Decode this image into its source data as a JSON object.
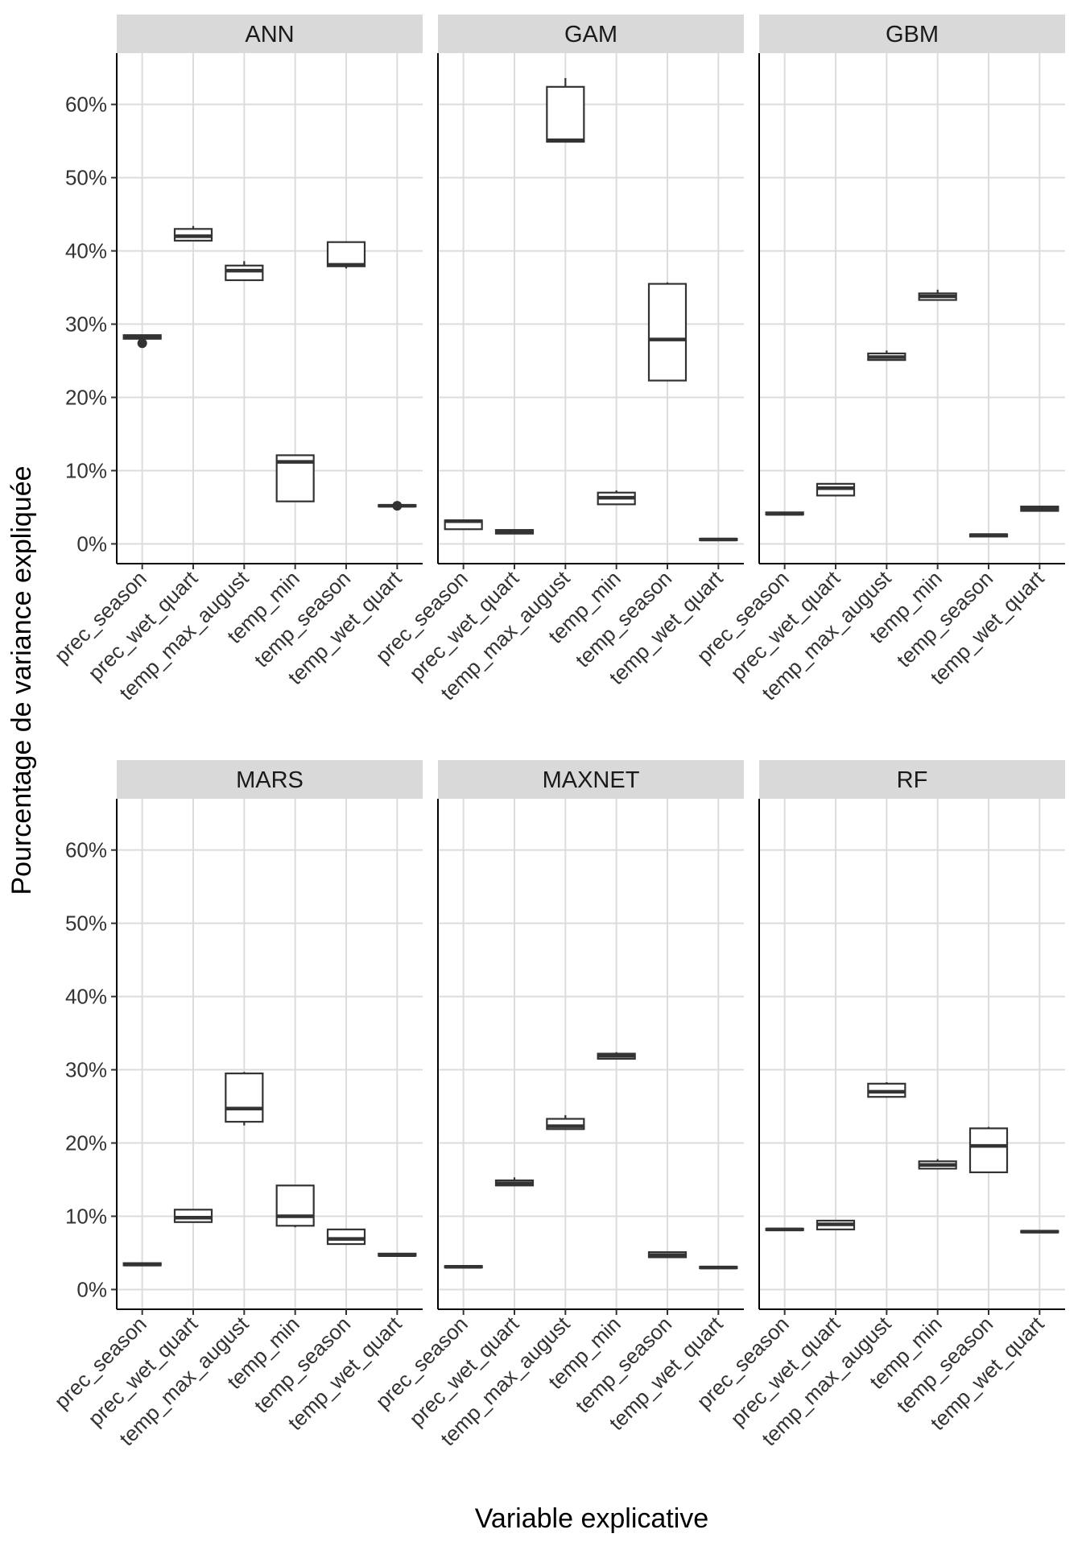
{
  "chart_data": {
    "type": "boxplot",
    "facets": [
      "ANN",
      "GAM",
      "GBM",
      "MARS",
      "MAXNET",
      "RF"
    ],
    "xlabel": "Variable explicative",
    "ylabel": "Pourcentage de variance expliquée",
    "categories": [
      "prec_season",
      "prec_wet_quart",
      "temp_max_august",
      "temp_min",
      "temp_season",
      "temp_wet_quart"
    ],
    "y_ticks": [
      0,
      10,
      20,
      30,
      40,
      50,
      60
    ],
    "y_tick_labels": [
      "0%",
      "10%",
      "20%",
      "30%",
      "40%",
      "50%",
      "60%"
    ],
    "ylim": [
      -2.7,
      67
    ],
    "grid": true,
    "series": [
      {
        "name": "ANN",
        "boxes": [
          {
            "category": "prec_season",
            "min": 28.0,
            "q1": 28.0,
            "median": 28.3,
            "q3": 28.5,
            "max": 28.5,
            "outliers": [
              27.4
            ]
          },
          {
            "category": "prec_wet_quart",
            "min": 41.4,
            "q1": 41.4,
            "median": 42.0,
            "q3": 43.0,
            "max": 43.4,
            "outliers": []
          },
          {
            "category": "temp_max_august",
            "min": 36.0,
            "q1": 36.0,
            "median": 37.3,
            "q3": 38.0,
            "max": 38.6,
            "outliers": []
          },
          {
            "category": "temp_min",
            "min": 5.8,
            "q1": 5.8,
            "median": 11.2,
            "q3": 12.1,
            "max": 12.1,
            "outliers": []
          },
          {
            "category": "temp_season",
            "min": 37.6,
            "q1": 37.9,
            "median": 38.1,
            "q3": 41.2,
            "max": 41.3,
            "outliers": []
          },
          {
            "category": "temp_wet_quart",
            "min": 5.0,
            "q1": 5.1,
            "median": 5.2,
            "q3": 5.3,
            "max": 5.3,
            "outliers": [
              5.2
            ]
          }
        ]
      },
      {
        "name": "GAM",
        "boxes": [
          {
            "category": "prec_season",
            "min": 2.0,
            "q1": 2.0,
            "median": 3.1,
            "q3": 3.2,
            "max": 3.2,
            "outliers": []
          },
          {
            "category": "prec_wet_quart",
            "min": 1.4,
            "q1": 1.4,
            "median": 1.7,
            "q3": 1.9,
            "max": 1.9,
            "outliers": []
          },
          {
            "category": "temp_max_august",
            "min": 54.8,
            "q1": 54.9,
            "median": 55.1,
            "q3": 62.4,
            "max": 63.6,
            "outliers": []
          },
          {
            "category": "temp_min",
            "min": 5.4,
            "q1": 5.4,
            "median": 6.3,
            "q3": 7.0,
            "max": 7.3,
            "outliers": []
          },
          {
            "category": "temp_season",
            "min": 22.3,
            "q1": 22.3,
            "median": 27.9,
            "q3": 35.5,
            "max": 35.7,
            "outliers": []
          },
          {
            "category": "temp_wet_quart",
            "min": 0.5,
            "q1": 0.5,
            "median": 0.6,
            "q3": 0.7,
            "max": 0.7,
            "outliers": []
          }
        ]
      },
      {
        "name": "GBM",
        "boxes": [
          {
            "category": "prec_season",
            "min": 4.0,
            "q1": 4.0,
            "median": 4.1,
            "q3": 4.3,
            "max": 4.3,
            "outliers": []
          },
          {
            "category": "prec_wet_quart",
            "min": 6.5,
            "q1": 6.6,
            "median": 7.6,
            "q3": 8.2,
            "max": 8.3,
            "outliers": []
          },
          {
            "category": "temp_max_august",
            "min": 25.0,
            "q1": 25.1,
            "median": 25.5,
            "q3": 26.0,
            "max": 26.4,
            "outliers": []
          },
          {
            "category": "temp_min",
            "min": 33.2,
            "q1": 33.3,
            "median": 33.8,
            "q3": 34.2,
            "max": 34.7,
            "outliers": []
          },
          {
            "category": "temp_season",
            "min": 1.0,
            "q1": 1.0,
            "median": 1.2,
            "q3": 1.3,
            "max": 1.3,
            "outliers": []
          },
          {
            "category": "temp_wet_quart",
            "min": 4.5,
            "q1": 4.5,
            "median": 4.8,
            "q3": 5.1,
            "max": 5.1,
            "outliers": []
          }
        ]
      },
      {
        "name": "MARS",
        "boxes": [
          {
            "category": "prec_season",
            "min": 3.3,
            "q1": 3.3,
            "median": 3.4,
            "q3": 3.6,
            "max": 3.6,
            "outliers": []
          },
          {
            "category": "prec_wet_quart",
            "min": 9.2,
            "q1": 9.2,
            "median": 9.8,
            "q3": 10.9,
            "max": 10.9,
            "outliers": []
          },
          {
            "category": "temp_max_august",
            "min": 22.4,
            "q1": 22.9,
            "median": 24.7,
            "q3": 29.5,
            "max": 29.7,
            "outliers": []
          },
          {
            "category": "temp_min",
            "min": 8.5,
            "q1": 8.7,
            "median": 10.0,
            "q3": 14.2,
            "max": 14.2,
            "outliers": []
          },
          {
            "category": "temp_season",
            "min": 6.2,
            "q1": 6.2,
            "median": 6.9,
            "q3": 8.2,
            "max": 8.2,
            "outliers": []
          },
          {
            "category": "temp_wet_quart",
            "min": 4.5,
            "q1": 4.6,
            "median": 4.7,
            "q3": 4.9,
            "max": 4.9,
            "outliers": []
          }
        ]
      },
      {
        "name": "MAXNET",
        "boxes": [
          {
            "category": "prec_season",
            "min": 3.0,
            "q1": 3.0,
            "median": 3.1,
            "q3": 3.2,
            "max": 3.2,
            "outliers": []
          },
          {
            "category": "prec_wet_quart",
            "min": 14.2,
            "q1": 14.2,
            "median": 14.5,
            "q3": 14.9,
            "max": 15.3,
            "outliers": []
          },
          {
            "category": "temp_max_august",
            "min": 21.8,
            "q1": 21.9,
            "median": 22.3,
            "q3": 23.3,
            "max": 23.8,
            "outliers": []
          },
          {
            "category": "temp_min",
            "min": 31.4,
            "q1": 31.5,
            "median": 31.9,
            "q3": 32.2,
            "max": 32.4,
            "outliers": []
          },
          {
            "category": "temp_season",
            "min": 4.4,
            "q1": 4.4,
            "median": 4.7,
            "q3": 5.1,
            "max": 5.1,
            "outliers": []
          },
          {
            "category": "temp_wet_quart",
            "min": 2.9,
            "q1": 2.9,
            "median": 3.0,
            "q3": 3.1,
            "max": 3.1,
            "outliers": []
          }
        ]
      },
      {
        "name": "RF",
        "boxes": [
          {
            "category": "prec_season",
            "min": 8.1,
            "q1": 8.1,
            "median": 8.2,
            "q3": 8.3,
            "max": 8.3,
            "outliers": []
          },
          {
            "category": "prec_wet_quart",
            "min": 8.2,
            "q1": 8.2,
            "median": 8.9,
            "q3": 9.4,
            "max": 9.4,
            "outliers": []
          },
          {
            "category": "temp_max_august",
            "min": 26.2,
            "q1": 26.3,
            "median": 27.0,
            "q3": 28.1,
            "max": 28.3,
            "outliers": []
          },
          {
            "category": "temp_min",
            "min": 16.5,
            "q1": 16.5,
            "median": 17.0,
            "q3": 17.5,
            "max": 17.8,
            "outliers": []
          },
          {
            "category": "temp_season",
            "min": 16.0,
            "q1": 16.0,
            "median": 19.6,
            "q3": 22.0,
            "max": 22.2,
            "outliers": []
          },
          {
            "category": "temp_wet_quart",
            "min": 7.8,
            "q1": 7.8,
            "median": 7.9,
            "q3": 8.0,
            "max": 8.0,
            "outliers": []
          }
        ]
      }
    ]
  }
}
